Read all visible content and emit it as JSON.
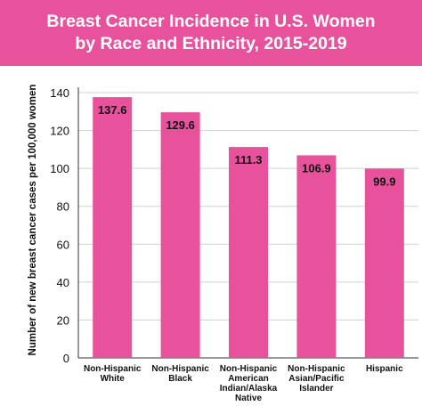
{
  "chart_data": {
    "type": "bar",
    "title_lines": [
      "Breast Cancer Incidence in U.S. Women",
      "by Race and Ethnicity, 2015-2019"
    ],
    "ylabel": "Number of new breast cancer cases per 100,000 women",
    "xlabel": "",
    "categories": [
      [
        "Non-Hispanic",
        "White"
      ],
      [
        "Non-Hispanic",
        "Black"
      ],
      [
        "Non-Hispanic",
        "American",
        "Indian/Alaska",
        "Native"
      ],
      [
        "Non-Hispanic",
        "Asian/Pacific",
        "Islander"
      ],
      [
        "Hispanic"
      ]
    ],
    "values": [
      137.6,
      129.6,
      111.3,
      106.9,
      99.9
    ],
    "value_labels": [
      "137.6",
      "129.6",
      "111.3",
      "106.9",
      "99.9"
    ],
    "ylim": [
      0,
      140
    ],
    "yticks": [
      "0",
      "20",
      "40",
      "60",
      "80",
      "100",
      "120",
      "140"
    ],
    "grid": true,
    "legend": "none",
    "colors": {
      "bar": "#e8519c",
      "banner": "#e8519c",
      "grid": "#d0d0d0",
      "text": "#111111",
      "title_text": "#ffffff"
    }
  }
}
